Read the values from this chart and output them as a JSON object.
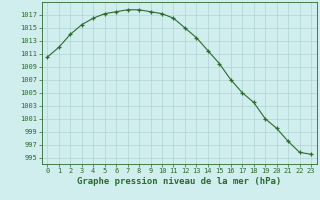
{
  "x": [
    0,
    1,
    2,
    3,
    4,
    5,
    6,
    7,
    8,
    9,
    10,
    11,
    12,
    13,
    14,
    15,
    16,
    17,
    18,
    19,
    20,
    21,
    22,
    23
  ],
  "y": [
    1010.5,
    1012.0,
    1014.0,
    1015.5,
    1016.5,
    1017.2,
    1017.5,
    1017.8,
    1017.8,
    1017.5,
    1017.2,
    1016.5,
    1015.0,
    1013.5,
    1011.5,
    1009.5,
    1007.0,
    1005.0,
    1003.5,
    1001.0,
    999.5,
    997.5,
    995.8,
    995.5
  ],
  "line_color": "#2d6a2d",
  "marker": "+",
  "bg_color": "#d0eeee",
  "grid_color": "#aacccc",
  "title": "Graphe pression niveau de la mer (hPa)",
  "ylim": [
    994,
    1019
  ],
  "xlim": [
    -0.5,
    23.5
  ],
  "yticks": [
    995,
    997,
    999,
    1001,
    1003,
    1005,
    1007,
    1009,
    1011,
    1013,
    1015,
    1017
  ],
  "xticks": [
    0,
    1,
    2,
    3,
    4,
    5,
    6,
    7,
    8,
    9,
    10,
    11,
    12,
    13,
    14,
    15,
    16,
    17,
    18,
    19,
    20,
    21,
    22,
    23
  ],
  "title_fontsize": 6.5,
  "tick_fontsize": 5.0,
  "line_color_hex": "#2d6a2d",
  "spine_color": "#2d6a2d"
}
